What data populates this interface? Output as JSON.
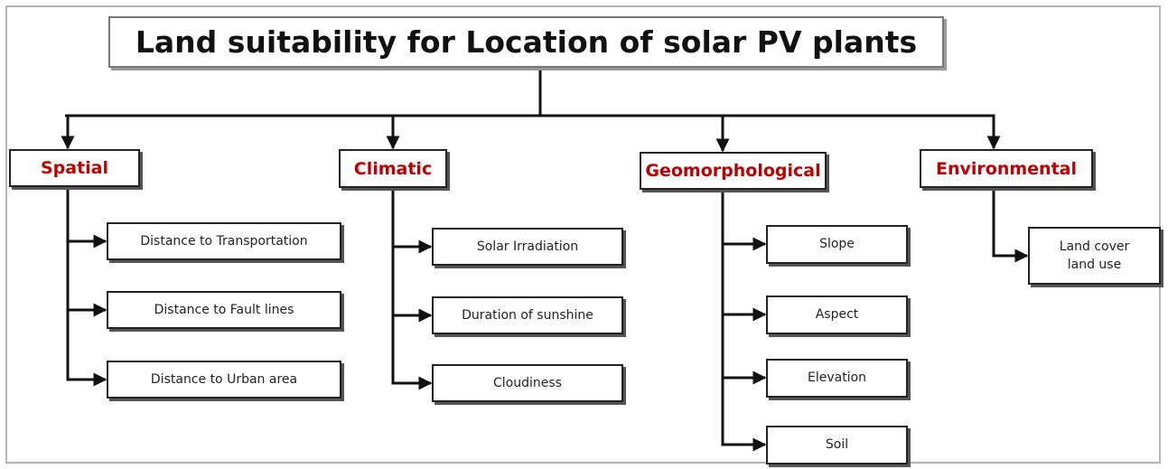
{
  "title": "Land suitability for Location of solar PV plants",
  "categories": [
    {
      "name": "Spatial",
      "items": [
        "Distance to Transportation",
        "Distance to Fault lines",
        "Distance to Urban area"
      ]
    },
    {
      "name": "Climatic",
      "items": [
        "Solar Irradiation",
        "Duration of sunshine",
        "Cloudiness"
      ]
    },
    {
      "name": "Geomorphological",
      "items": [
        "Slope",
        "Aspect",
        "Elevation",
        "Soil"
      ]
    },
    {
      "name": "Environmental",
      "items": [
        "Land cover\nland use"
      ]
    }
  ]
}
